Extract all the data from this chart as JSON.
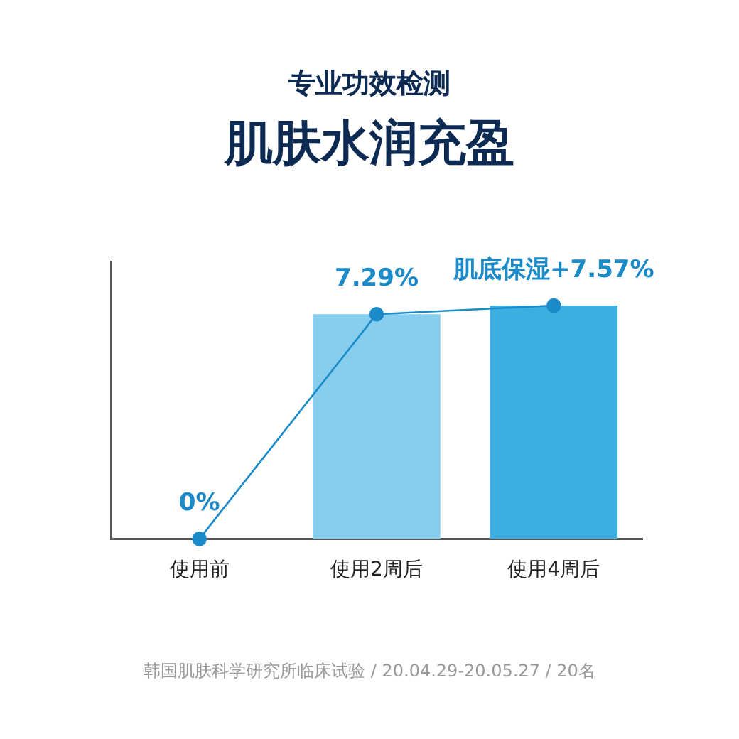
{
  "chart_data": {
    "type": "bar",
    "subtitle": "专业功效检测",
    "title": "肌肤水润充盈",
    "categories": [
      "使用前",
      "使用2周后",
      "使用4周后"
    ],
    "series": [
      {
        "colors": [
          "#c5e6f8",
          "#87cdee",
          "#3daee0"
        ],
        "values": [
          0,
          7.29,
          7.57
        ]
      },
      {
        "type": "line",
        "color": "#1a8ac8",
        "values": [
          0,
          7.29,
          7.57
        ],
        "value_labels": [
          "0%",
          "7.29%",
          "肌底保湿+7.57%"
        ]
      }
    ],
    "tick_labels": "x",
    "marker": "circle",
    "line_style": "solid",
    "grid": false,
    "legend": false,
    "annotations": [
      "韩国肌肤科学研究所临床试验 / 20.04.29-20.05.27 / 20名"
    ]
  }
}
